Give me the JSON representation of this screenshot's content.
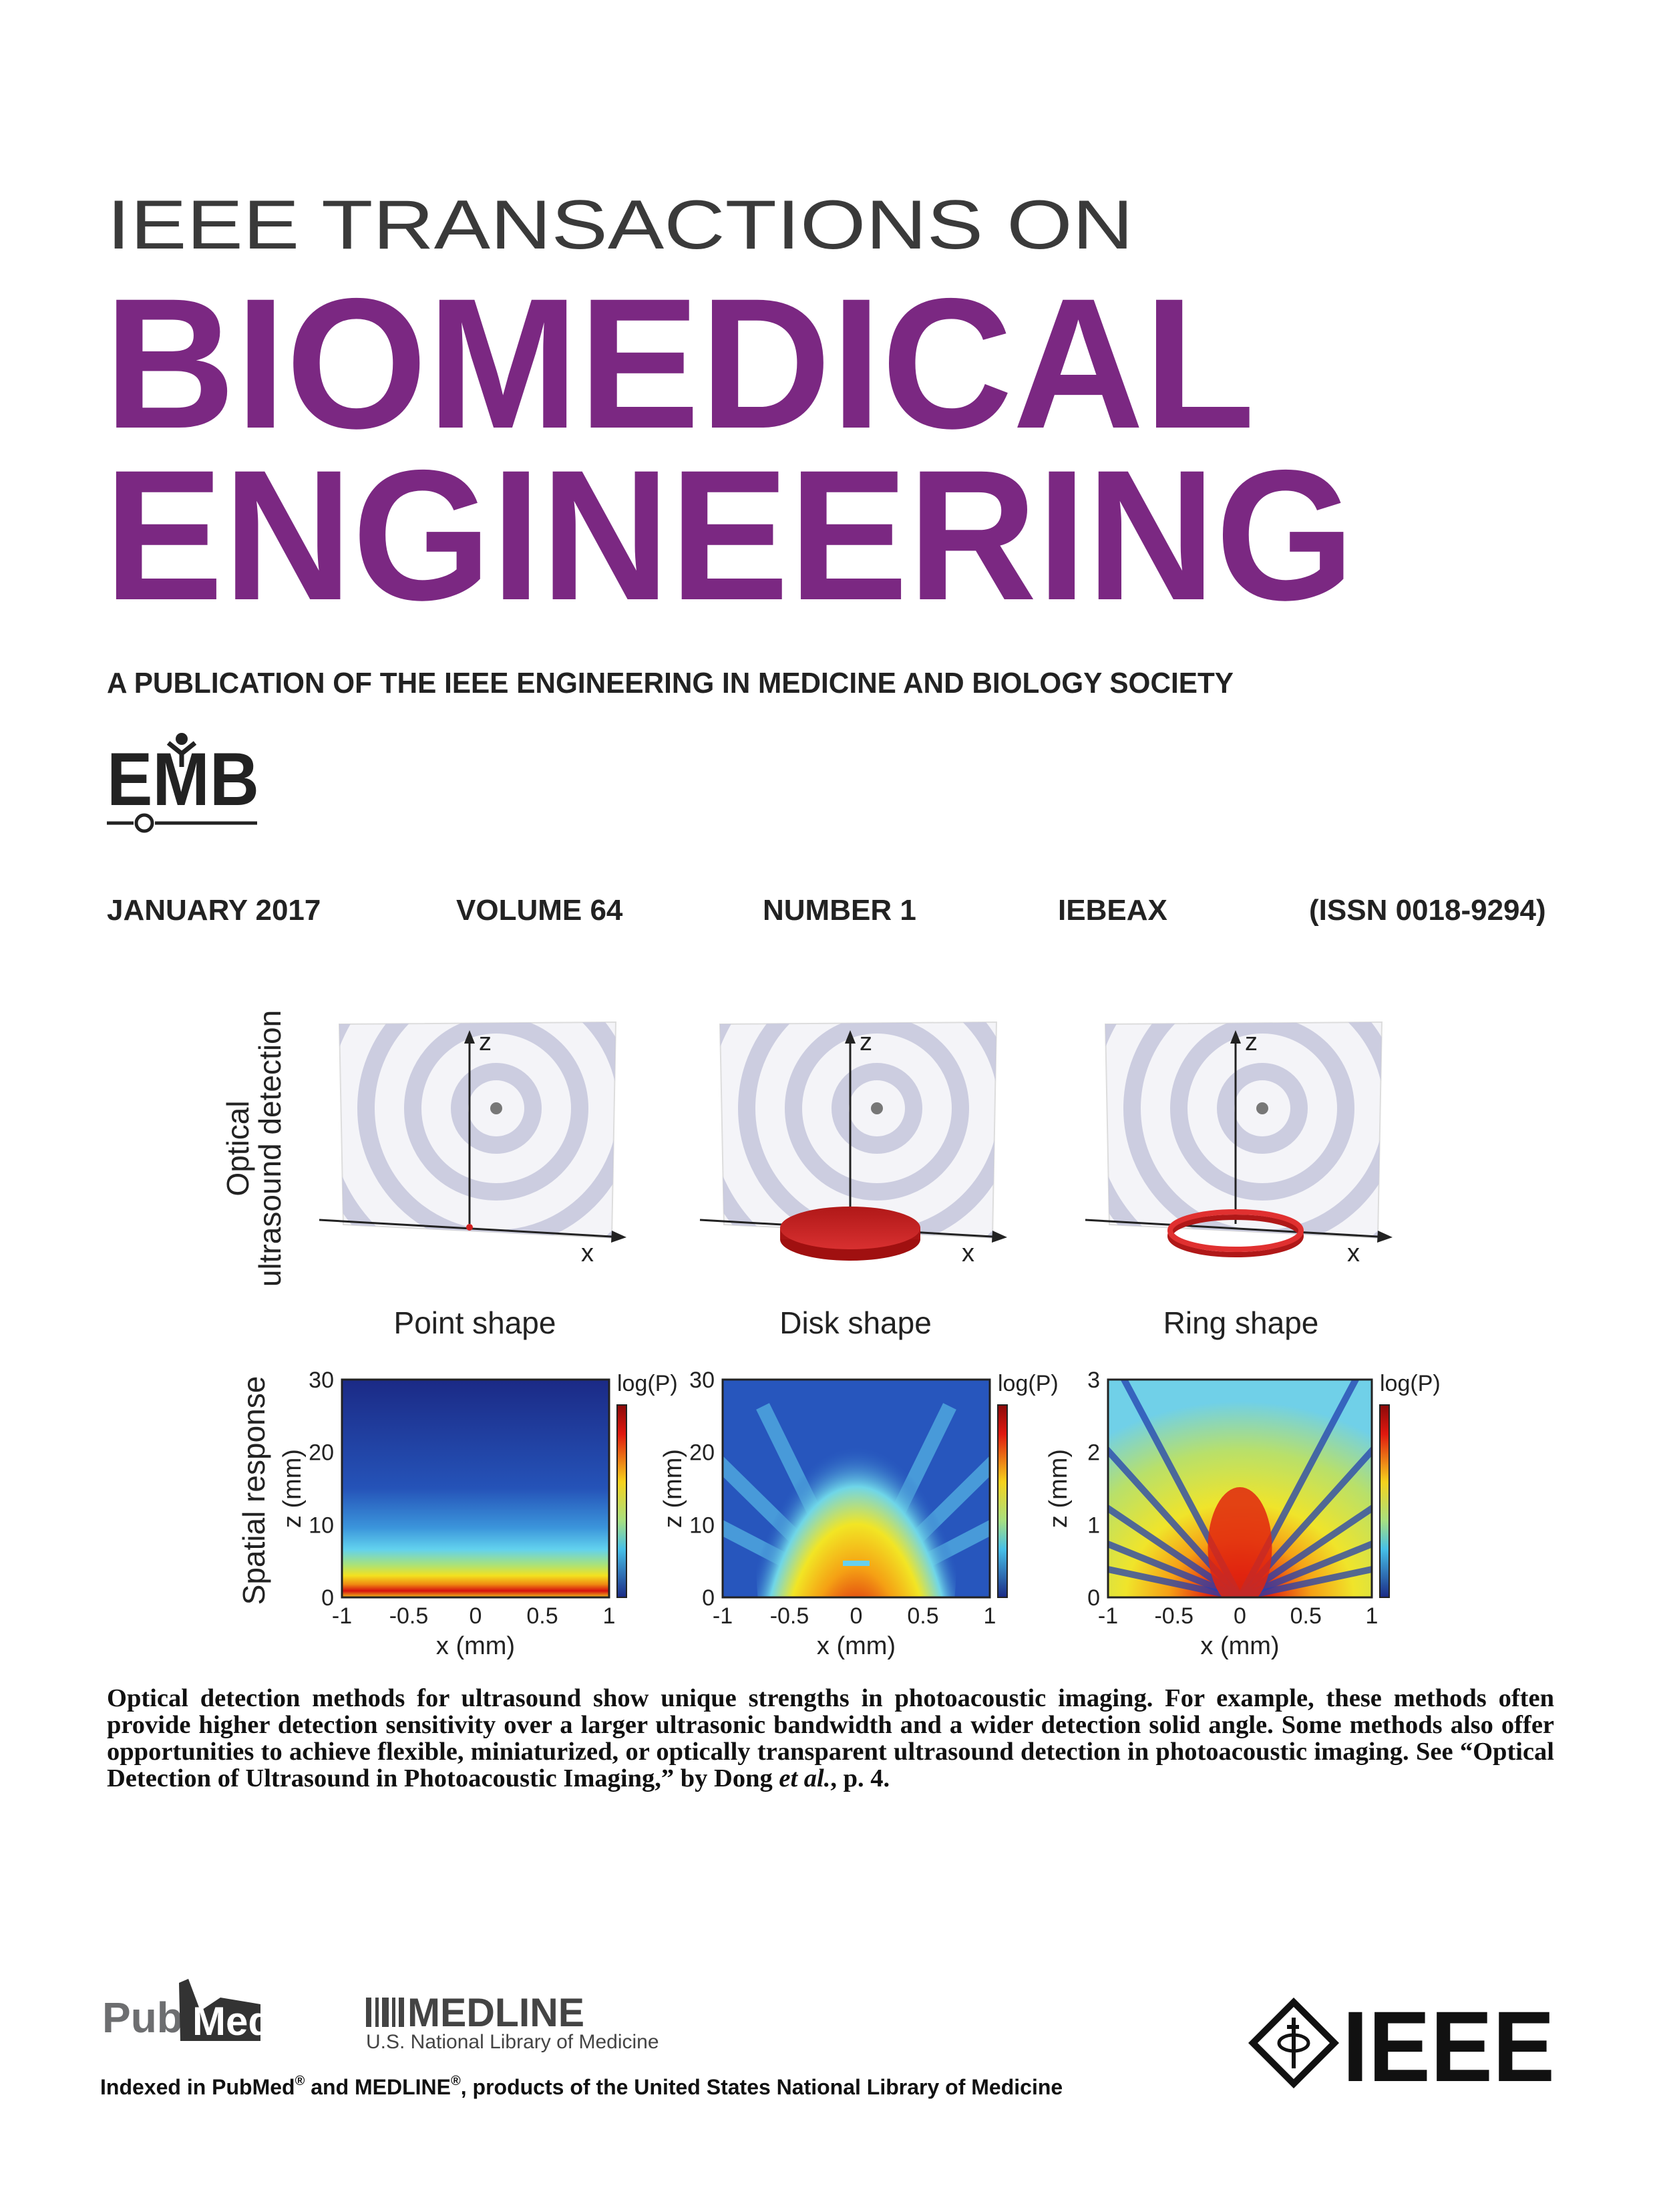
{
  "header": {
    "series_line": "IEEE TRANSACTIONS ON",
    "title_line1": "BIOMEDICAL",
    "title_line2": "ENGINEERING",
    "publisher_line": "A PUBLICATION OF THE IEEE ENGINEERING IN MEDICINE AND BIOLOGY SOCIETY",
    "society_logo": "EMB"
  },
  "issue": {
    "date": "JANUARY 2017",
    "volume": "VOLUME 64",
    "number": "NUMBER 1",
    "coden": "IEBEAX",
    "issn": "(ISSN 0018-9294)"
  },
  "figure": {
    "top_row_label": [
      "Optical",
      "ultrasound detection"
    ],
    "bottom_row_label": "Spatial response",
    "panels": [
      {
        "shape": "Point shape",
        "axis_z": "z",
        "axis_x": "x",
        "z_ticks": [
          "30",
          "20",
          "10",
          "0"
        ],
        "x_ticks": [
          "-1",
          "-0.5",
          "0",
          "0.5",
          "1"
        ],
        "x_label": "x (mm)",
        "y_label": "z (mm)",
        "colorbar_label": "log(P)"
      },
      {
        "shape": "Disk shape",
        "axis_z": "z",
        "axis_x": "x",
        "z_ticks": [
          "30",
          "20",
          "10",
          "0"
        ],
        "x_ticks": [
          "-1",
          "-0.5",
          "0",
          "0.5",
          "1"
        ],
        "x_label": "x (mm)",
        "y_label": "z (mm)",
        "colorbar_label": "log(P)"
      },
      {
        "shape": "Ring shape",
        "axis_z": "z",
        "axis_x": "x",
        "z_ticks": [
          "3",
          "2",
          "1",
          "0"
        ],
        "x_ticks": [
          "-1",
          "-0.5",
          "0",
          "0.5",
          "1"
        ],
        "x_label": "x (mm)",
        "y_label": "z (mm)",
        "colorbar_label": "log(P)"
      }
    ]
  },
  "caption": {
    "text_before": "Optical detection methods for ultrasound show unique strengths in photoacoustic imaging. For example, these methods often provide higher detection sensitivity over a larger ultrasonic bandwidth and a wider detection solid angle. Some methods also offer opportunities to achieve flexible, miniaturized, or optically transparent ultrasound detection in photoacoustic imaging. See “Optical Detection of Ultrasound in Photoacoustic Imaging,” by Dong ",
    "italic": "et al.",
    "text_after": ", p. 4."
  },
  "footer": {
    "pubmed_logo": [
      "Pub",
      "Med"
    ],
    "medline_logo": "MEDLINE",
    "medline_sub": "U.S. National Library of Medicine",
    "ieee_logo": "IEEE",
    "indexed_note": [
      "Indexed in PubMed",
      "®",
      " and MEDLINE",
      "®",
      ", products of the United States National Library of Medicine"
    ]
  }
}
